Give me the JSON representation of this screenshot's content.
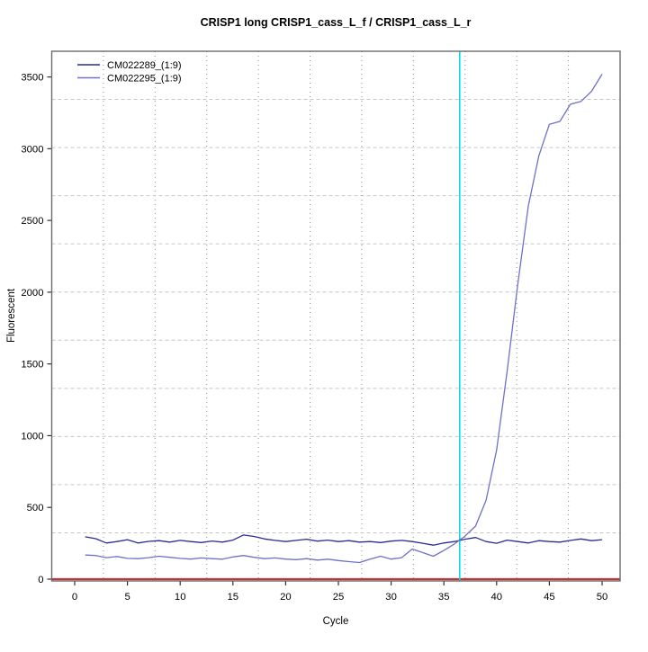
{
  "chart_data": {
    "type": "line",
    "title": "CRISP1 long CRISP1_cass_L_f / CRISP1_cass_L_r",
    "xlabel": "Cycle",
    "ylabel": "Fluorescent",
    "x_ticks": [
      0,
      5,
      10,
      15,
      20,
      25,
      30,
      35,
      40,
      45,
      50
    ],
    "y_ticks": [
      0,
      500,
      1000,
      1500,
      2000,
      2500,
      3000,
      3500
    ],
    "xlim": [
      -2.2,
      51.7
    ],
    "ylim": [
      -13,
      3680
    ],
    "grid": "11x11 divisions; vertical dotted gray, horizontal dashed light gray",
    "legend_position": "top-left",
    "x": [
      1,
      2,
      3,
      4,
      5,
      6,
      7,
      8,
      9,
      10,
      11,
      12,
      13,
      14,
      15,
      16,
      17,
      18,
      19,
      20,
      21,
      22,
      23,
      24,
      25,
      26,
      27,
      28,
      29,
      30,
      31,
      32,
      33,
      34,
      35,
      36,
      37,
      38,
      39,
      40,
      41,
      42,
      43,
      44,
      45,
      46,
      47,
      48,
      49,
      50
    ],
    "series": [
      {
        "name": "CM022289_(1:9)",
        "color": "#2b2b96",
        "values": [
          295,
          282,
          252,
          262,
          275,
          252,
          263,
          268,
          258,
          270,
          262,
          255,
          266,
          258,
          272,
          308,
          298,
          280,
          270,
          262,
          270,
          278,
          265,
          272,
          262,
          268,
          258,
          262,
          255,
          265,
          270,
          262,
          250,
          237,
          252,
          262,
          278,
          290,
          262,
          250,
          272,
          262,
          252,
          268,
          262,
          258,
          270,
          280,
          268,
          275
        ]
      },
      {
        "name": "CM022295_(1:9)",
        "color": "#7070c8",
        "values": [
          168,
          165,
          150,
          158,
          145,
          143,
          150,
          160,
          152,
          145,
          140,
          148,
          143,
          139,
          155,
          165,
          152,
          143,
          148,
          140,
          136,
          143,
          133,
          139,
          130,
          122,
          116,
          140,
          160,
          140,
          150,
          210,
          185,
          160,
          200,
          245,
          300,
          370,
          550,
          900,
          1450,
          2050,
          2600,
          2950,
          3170,
          3190,
          3310,
          3330,
          3400,
          3520
        ]
      }
    ],
    "threshold_line": {
      "y": 0,
      "color": "#bf3434"
    },
    "ct_marker_line": {
      "x": 36.5,
      "color": "#00dde6"
    }
  }
}
